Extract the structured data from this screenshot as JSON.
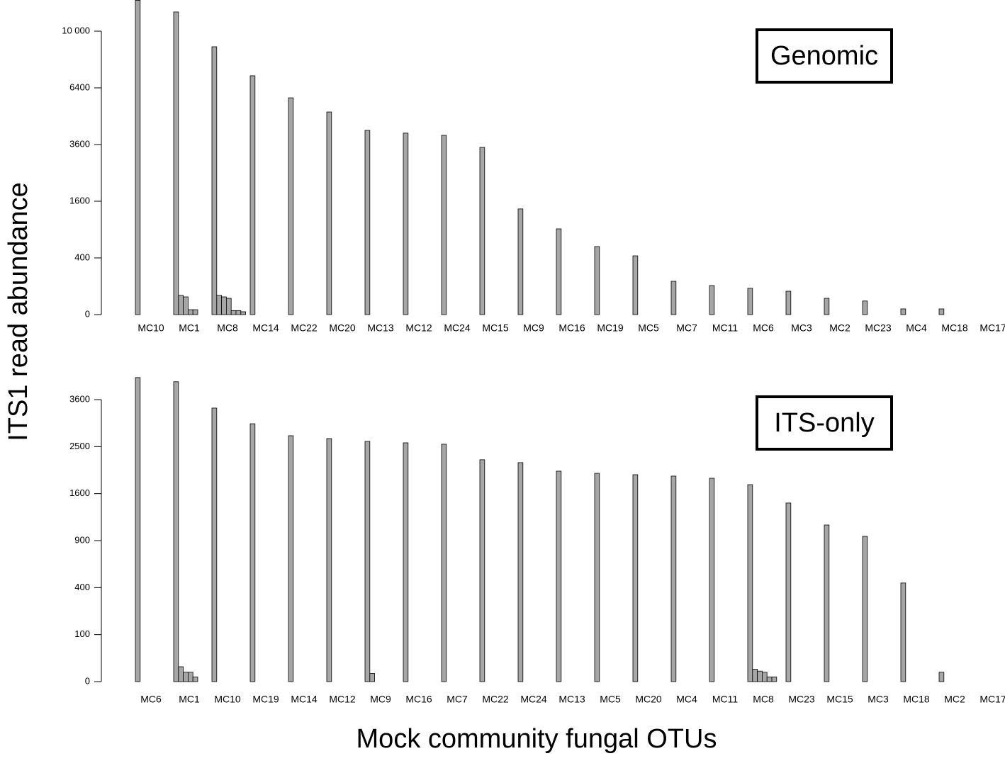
{
  "chart_data": [
    {
      "type": "bar",
      "scale": "sqrt",
      "label": "Genomic",
      "ylabel": "ITS1 read abundance",
      "color": "#a6a6a6",
      "ylim": [
        0,
        10000
      ],
      "yticks": [
        0,
        400,
        1600,
        3600,
        6400,
        {
          "value": 10000,
          "label": "10 000"
        }
      ],
      "categories": [
        "MC10",
        "MC1",
        "MC8",
        "MC14",
        "MC22",
        "MC20",
        "MC13",
        "MC12",
        "MC24",
        "MC15",
        "MC9",
        "MC16",
        "MC19",
        "MC5",
        "MC7",
        "MC11",
        "MC6",
        "MC3",
        "MC2",
        "MC23",
        "MC4",
        "MC18",
        "MC17"
      ],
      "values": [
        [
          12300,
          0,
          0,
          0,
          0,
          0,
          0
        ],
        [
          11400,
          46,
          39,
          3,
          3,
          0,
          0
        ],
        [
          8930,
          46,
          39,
          33,
          2,
          2,
          1
        ],
        [
          7100,
          0,
          0,
          0,
          0,
          0,
          0
        ],
        [
          5850,
          0,
          0,
          0,
          0,
          0,
          0
        ],
        [
          5110,
          0,
          0,
          0,
          0,
          0,
          0
        ],
        [
          4225,
          0,
          0,
          0,
          0,
          0,
          0
        ],
        [
          4100,
          0,
          0,
          0,
          0,
          0,
          0
        ],
        [
          4000,
          0,
          0,
          0,
          0,
          0,
          0
        ],
        [
          3480,
          0,
          0,
          0,
          0,
          0,
          0
        ],
        [
          1390,
          0,
          0,
          0,
          0,
          0,
          0
        ],
        [
          915,
          0,
          0,
          0,
          0,
          0,
          0
        ],
        [
          576,
          0,
          0,
          0,
          0,
          0,
          0
        ],
        [
          430,
          0,
          0,
          0,
          0,
          0,
          0
        ],
        [
          138,
          0,
          0,
          0,
          0,
          0,
          0
        ],
        [
          105,
          0,
          0,
          0,
          0,
          0,
          0
        ],
        [
          86,
          0,
          0,
          0,
          0,
          0,
          0
        ],
        [
          68,
          0,
          0,
          0,
          0,
          0,
          0
        ],
        [
          33,
          0,
          0,
          0,
          0,
          0,
          0
        ],
        [
          23,
          0,
          0,
          0,
          0,
          0,
          0
        ],
        [
          4,
          0,
          0,
          0,
          0,
          0,
          0
        ],
        [
          4,
          0,
          0,
          0,
          0,
          0,
          0
        ],
        [
          0,
          0,
          0,
          0,
          0,
          0,
          0
        ]
      ]
    },
    {
      "type": "bar",
      "scale": "sqrt",
      "label": "ITS-only",
      "xlabel": "Mock community fungal OTUs",
      "color": "#a6a6a6",
      "ylim": [
        0,
        3600
      ],
      "yticks": [
        0,
        100,
        400,
        900,
        1600,
        2500,
        3600
      ],
      "categories": [
        "MC6",
        "MC1",
        "MC10",
        "MC19",
        "MC14",
        "MC12",
        "MC9",
        "MC16",
        "MC7",
        "MC22",
        "MC24",
        "MC13",
        "MC5",
        "MC20",
        "MC4",
        "MC11",
        "MC8",
        "MC23",
        "MC15",
        "MC3",
        "MC18",
        "MC2",
        "MC17"
      ],
      "values": [
        [
          4185,
          0,
          0,
          0,
          0,
          0,
          0
        ],
        [
          4070,
          10,
          4,
          4,
          1,
          0,
          0
        ],
        [
          3387,
          0,
          0,
          0,
          0,
          0,
          0
        ],
        [
          3010,
          0,
          0,
          0,
          0,
          0,
          0
        ],
        [
          2737,
          0,
          0,
          0,
          0,
          0,
          0
        ],
        [
          2674,
          0,
          0,
          0,
          0,
          0,
          0
        ],
        [
          2612,
          3,
          0,
          0,
          0,
          0,
          0
        ],
        [
          2581,
          0,
          0,
          0,
          0,
          0,
          0
        ],
        [
          2551,
          0,
          0,
          0,
          0,
          0,
          0
        ],
        [
          2228,
          0,
          0,
          0,
          0,
          0,
          0
        ],
        [
          2171,
          0,
          0,
          0,
          0,
          0,
          0
        ],
        [
          2005,
          0,
          0,
          0,
          0,
          0,
          0
        ],
        [
          1964,
          0,
          0,
          0,
          0,
          0,
          0
        ],
        [
          1938,
          0,
          0,
          0,
          0,
          0,
          0
        ],
        [
          1912,
          0,
          0,
          0,
          0,
          0,
          0
        ],
        [
          1872,
          0,
          0,
          0,
          0,
          0,
          0
        ],
        [
          1756,
          7,
          5,
          4,
          1,
          1,
          0
        ],
        [
          1444,
          0,
          0,
          0,
          0,
          0,
          0
        ],
        [
          1110,
          0,
          0,
          0,
          0,
          0,
          0
        ],
        [
          955,
          0,
          0,
          0,
          0,
          0,
          0
        ],
        [
          440,
          0,
          0,
          0,
          0,
          0,
          0
        ],
        [
          4,
          0,
          0,
          0,
          0,
          0,
          0
        ],
        [
          0,
          0,
          0,
          0,
          0,
          0,
          0
        ]
      ]
    }
  ]
}
